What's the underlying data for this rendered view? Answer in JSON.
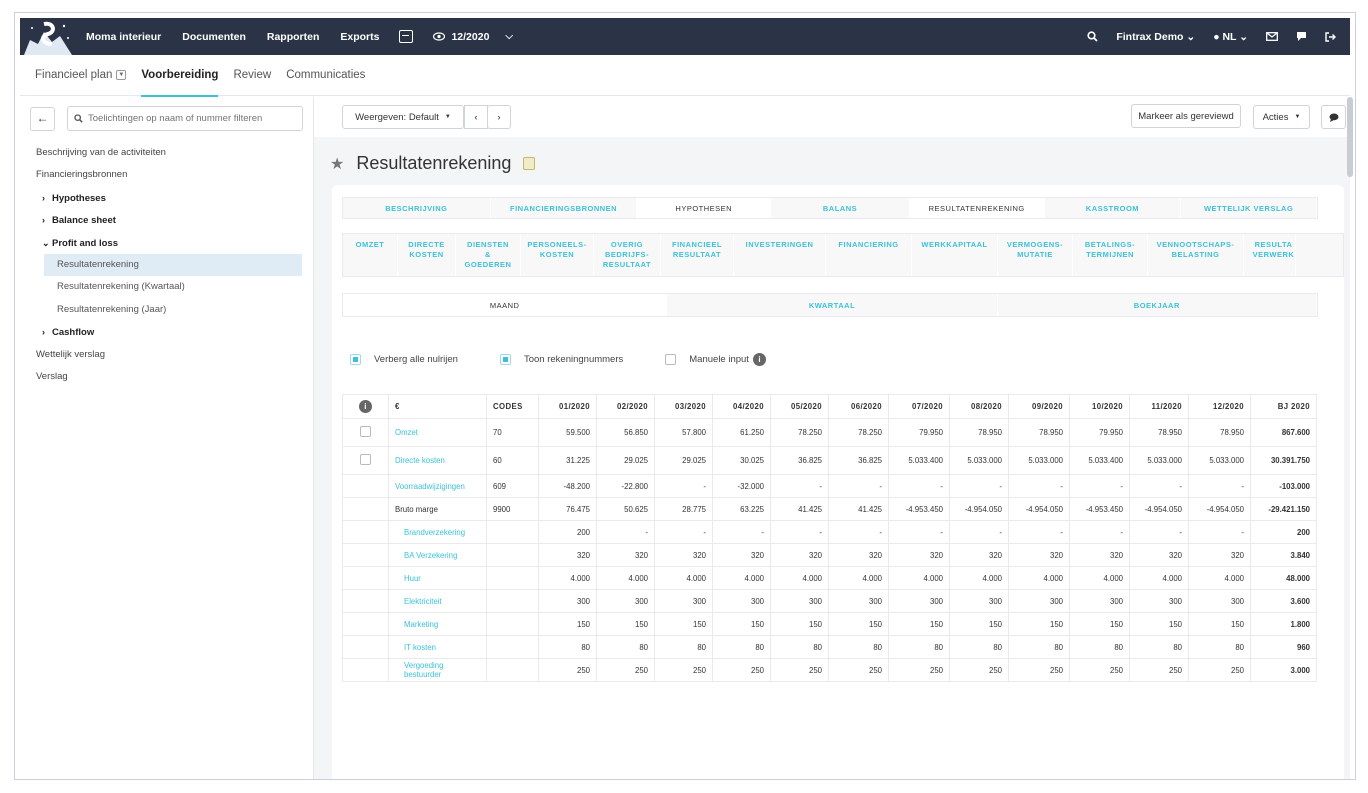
{
  "nav": {
    "items": [
      "Moma interieur",
      "Documenten",
      "Rapporten",
      "Exports"
    ],
    "period": "12/2020",
    "company": "Fintrax Demo",
    "language": "NL",
    "icons": [
      "calculator-icon",
      "eye-icon",
      "search-icon",
      "globe-icon",
      "mail-icon",
      "chat-icon",
      "logout-icon"
    ]
  },
  "tabs": [
    {
      "label": "Financieel plan"
    },
    {
      "label": "Voorbereiding"
    },
    {
      "label": "Review"
    },
    {
      "label": "Communicaties"
    }
  ],
  "sidebar": {
    "filter_placeholder": "Toelichtingen op naam of nummer filteren",
    "items": [
      "Beschrijving van de activiteiten",
      "Financieringsbronnen",
      "Hypotheses",
      "Balance sheet",
      "Profit and loss",
      "Resultatenrekening",
      "Resultatenrekening (Kwartaal)",
      "Resultatenrekening (Jaar)",
      "Cashflow",
      "Wettelijk verslag",
      "Verslag"
    ]
  },
  "toolbar": {
    "view_label": "Weergeven: Default",
    "mark_reviewed": "Markeer als gereviewd",
    "actions": "Acties"
  },
  "page": {
    "title": "Resultatenrekening"
  },
  "section_tabs": [
    "BESCHRIJVING",
    "FINANCIERINGSBRONNEN",
    "HYPOTHESEN",
    "BALANS",
    "RESULTATENREKENING",
    "KASSTROOM",
    "WETTELIJK VERSLAG"
  ],
  "sub_tabs": [
    "OMZET",
    "DIRECTE KOSTEN",
    "DIENSTEN & GOEDEREN",
    "PERSONEELS-KOSTEN",
    "OVERIG BEDRIJFS-RESULTAAT",
    "FINANCIEEL RESULTAAT",
    "INVESTERINGEN",
    "FINANCIERING",
    "WERKKAPITAAL",
    "VERMOGENS-MUTATIE",
    "BETALINGS-TERMIJNEN",
    "VENNOOTSCHAPS-BELASTING",
    "RESULTA VERWERK"
  ],
  "period_tabs": [
    "MAAND",
    "KWARTAAL",
    "BOEKJAAR"
  ],
  "options": {
    "hide_zero": "Verberg alle nulrijen",
    "show_accounts": "Toon rekeningnummers",
    "manual_input": "Manuele input"
  },
  "table": {
    "info": "i",
    "headers": [
      "€",
      "CODES",
      "01/2020",
      "02/2020",
      "03/2020",
      "04/2020",
      "05/2020",
      "06/2020",
      "07/2020",
      "08/2020",
      "09/2020",
      "10/2020",
      "11/2020",
      "12/2020",
      "BJ 2020"
    ],
    "rows": [
      {
        "name": "Omzet",
        "code": "70",
        "values": [
          "59.500",
          "56.850",
          "57.800",
          "61.250",
          "78.250",
          "78.250",
          "79.950",
          "78.950",
          "78.950",
          "79.950",
          "78.950",
          "78.950",
          "867.600"
        ]
      },
      {
        "name": "Directe kosten",
        "code": "60",
        "values": [
          "31.225",
          "29.025",
          "29.025",
          "30.025",
          "36.825",
          "36.825",
          "5.033.400",
          "5.033.000",
          "5.033.000",
          "5.033.400",
          "5.033.000",
          "5.033.000",
          "30.391.750"
        ]
      },
      {
        "name": "Voorraadwijzigingen",
        "code": "609",
        "values": [
          "-48.200",
          "-22.800",
          "-",
          "-32.000",
          "-",
          "-",
          "-",
          "-",
          "-",
          "-",
          "-",
          "-",
          "-103.000"
        ]
      },
      {
        "name": "Bruto marge",
        "code": "9900",
        "values": [
          "76.475",
          "50.625",
          "28.775",
          "63.225",
          "41.425",
          "41.425",
          "-4.953.450",
          "-4.954.050",
          "-4.954.050",
          "-4.953.450",
          "-4.954.050",
          "-4.954.050",
          "-29.421.150"
        ]
      },
      {
        "name": "Brandverzekering",
        "code": "",
        "values": [
          "200",
          "-",
          "-",
          "-",
          "-",
          "-",
          "-",
          "-",
          "-",
          "-",
          "-",
          "-",
          "200"
        ]
      },
      {
        "name": "BA Verzekering",
        "code": "",
        "values": [
          "320",
          "320",
          "320",
          "320",
          "320",
          "320",
          "320",
          "320",
          "320",
          "320",
          "320",
          "320",
          "3.840"
        ]
      },
      {
        "name": "Huur",
        "code": "",
        "values": [
          "4.000",
          "4.000",
          "4.000",
          "4.000",
          "4.000",
          "4.000",
          "4.000",
          "4.000",
          "4.000",
          "4.000",
          "4.000",
          "4.000",
          "48.000"
        ]
      },
      {
        "name": "Elektriciteit",
        "code": "",
        "values": [
          "300",
          "300",
          "300",
          "300",
          "300",
          "300",
          "300",
          "300",
          "300",
          "300",
          "300",
          "300",
          "3.600"
        ]
      },
      {
        "name": "Marketing",
        "code": "",
        "values": [
          "150",
          "150",
          "150",
          "150",
          "150",
          "150",
          "150",
          "150",
          "150",
          "150",
          "150",
          "150",
          "1.800"
        ]
      },
      {
        "name": "IT kosten",
        "code": "",
        "values": [
          "80",
          "80",
          "80",
          "80",
          "80",
          "80",
          "80",
          "80",
          "80",
          "80",
          "80",
          "80",
          "960"
        ]
      },
      {
        "name": "Vergoeding bestuurder",
        "code": "",
        "values": [
          "250",
          "250",
          "250",
          "250",
          "250",
          "250",
          "250",
          "250",
          "250",
          "250",
          "250",
          "250",
          "3.000"
        ]
      }
    ]
  },
  "colors": {
    "nav_bg": "#2b3447",
    "accent": "#3dc1d8",
    "selected_bg": "#dfecf6"
  }
}
